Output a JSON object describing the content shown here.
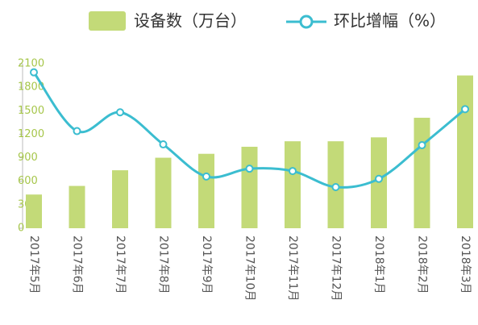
{
  "chart_data": {
    "type": "bar-line",
    "categories": [
      "2017年5月",
      "2017年6月",
      "2017年7月",
      "2017年8月",
      "2017年9月",
      "2017年10月",
      "2017年11月",
      "2017年12月",
      "2018年1月",
      "2018年2月",
      "2018年3月"
    ],
    "series": [
      {
        "name": "设备数（万台）",
        "type": "bar",
        "color": "#c3da78",
        "values": [
          430,
          540,
          740,
          900,
          950,
          1040,
          1110,
          1110,
          1160,
          1410,
          1950
        ]
      },
      {
        "name": "环比增幅（%）",
        "type": "line",
        "color": "#3bbdd0",
        "values": [
          1990,
          1240,
          1480,
          1070,
          660,
          760,
          730,
          525,
          630,
          1060,
          1520
        ]
      }
    ],
    "ylim": [
      0,
      2100
    ],
    "yticks": [
      0,
      300,
      600,
      900,
      1200,
      1500,
      1800,
      2100
    ]
  }
}
